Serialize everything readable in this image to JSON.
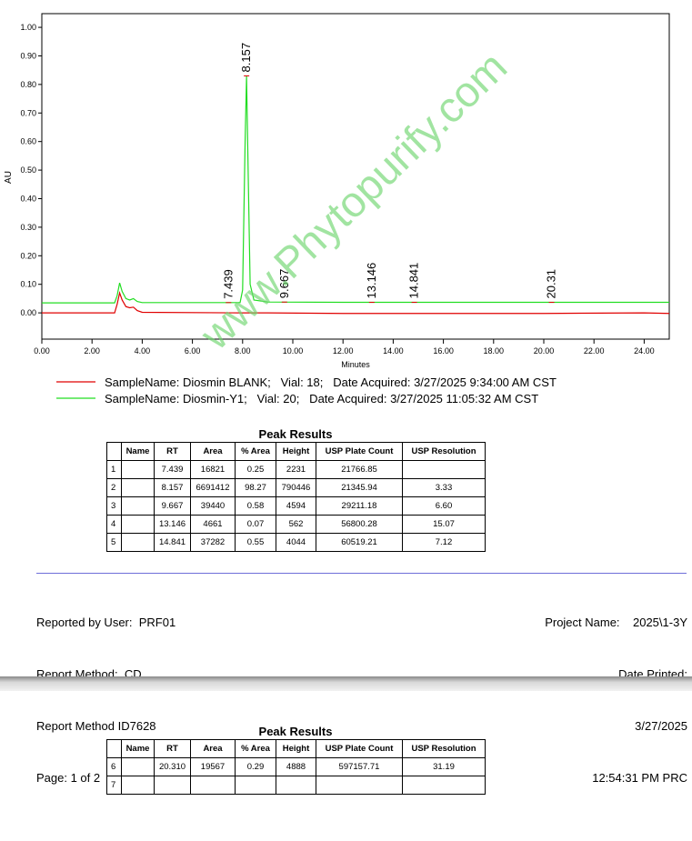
{
  "chart_data": {
    "type": "line",
    "x_label": "Minutes",
    "y_label": "AU",
    "xlim": [
      0,
      25
    ],
    "ylim": [
      -0.092,
      1.048
    ],
    "xticks": [
      {
        "value": 0,
        "label": "0.00"
      },
      {
        "value": 2,
        "label": "2.00"
      },
      {
        "value": 4,
        "label": "4.00"
      },
      {
        "value": 6,
        "label": "6.00"
      },
      {
        "value": 8,
        "label": "8.00"
      },
      {
        "value": 10,
        "label": "10.00"
      },
      {
        "value": 12,
        "label": "12.00"
      },
      {
        "value": 14,
        "label": "14.00"
      },
      {
        "value": 16,
        "label": "16.00"
      },
      {
        "value": 18,
        "label": "18.00"
      },
      {
        "value": 20,
        "label": "20.00"
      },
      {
        "value": 22,
        "label": "22.00"
      },
      {
        "value": 24,
        "label": "24.00"
      }
    ],
    "yticks": [
      {
        "value": 0,
        "label": "0.00"
      },
      {
        "value": 0.1,
        "label": "0.10"
      },
      {
        "value": 0.2,
        "label": "0.20"
      },
      {
        "value": 0.3,
        "label": "0.30"
      },
      {
        "value": 0.4,
        "label": "0.40"
      },
      {
        "value": 0.5,
        "label": "0.50"
      },
      {
        "value": 0.6,
        "label": "0.60"
      },
      {
        "value": 0.7,
        "label": "0.70"
      },
      {
        "value": 0.8,
        "label": "0.80"
      },
      {
        "value": 0.9,
        "label": "0.90"
      },
      {
        "value": 1,
        "label": "1.00"
      }
    ],
    "x": [
      0,
      2.9,
      3.0,
      3.1,
      3.2,
      3.35,
      3.5,
      3.65,
      3.8,
      4.0,
      7.9,
      8.0,
      8.1,
      8.157,
      8.22,
      8.3,
      8.45,
      9.0,
      12,
      16,
      20,
      24,
      25
    ],
    "series": [
      {
        "name": "SampleName: Diosmin BLANK;   Vial: 18;   Date Acquired: 3/27/2025 9:34:00 AM CST",
        "color": "#e00000",
        "values": [
          0.0,
          0.0,
          0.03,
          0.07,
          0.045,
          0.022,
          0.018,
          0.02,
          0.008,
          0.002,
          0.0,
          0.0,
          0.0,
          0.0,
          0.0,
          0.0,
          0.0,
          0.0,
          -0.002,
          -0.002,
          -0.002,
          0.0,
          -0.002
        ]
      },
      {
        "name": "SampleName: Diosmin-Y1;   Vial: 20;   Date Acquired: 3/27/2025 11:05:32 AM CST",
        "color": "#22dd22",
        "values": [
          0.035,
          0.035,
          0.06,
          0.105,
          0.075,
          0.05,
          0.045,
          0.05,
          0.04,
          0.036,
          0.036,
          0.08,
          0.6,
          0.83,
          0.5,
          0.1,
          0.045,
          0.038,
          0.037,
          0.037,
          0.037,
          0.037,
          0.037
        ]
      }
    ],
    "peak_labels": [
      7.439,
      8.157,
      9.667,
      13.146,
      14.841,
      20.31
    ]
  },
  "watermark": "www.Phytopurify.com",
  "tables": [
    {
      "title": "Peak Results",
      "columns": [
        null,
        "Name",
        "RT",
        "Area",
        "% Area",
        "Height",
        "USP Plate Count",
        "USP Resolution"
      ],
      "rows": [
        [
          "1",
          null,
          "7.439",
          "16821",
          "0.25",
          "2231",
          "21766.85",
          null
        ],
        [
          "2",
          null,
          "8.157",
          "6691412",
          "98.27",
          "790446",
          "21345.94",
          "3.33"
        ],
        [
          "3",
          null,
          "9.667",
          "39440",
          "0.58",
          "4594",
          "29211.18",
          "6.60"
        ],
        [
          "4",
          null,
          "13.146",
          "4661",
          "0.07",
          "562",
          "56800.28",
          "15.07"
        ],
        [
          "5",
          null,
          "14.841",
          "37282",
          "0.55",
          "4044",
          "60519.21",
          "7.12"
        ]
      ]
    },
    {
      "title": "Peak Results",
      "columns": [
        null,
        "Name",
        "RT",
        "Area",
        "% Area",
        "Height",
        "USP Plate Count",
        "USP Resolution"
      ],
      "rows": [
        [
          "6",
          null,
          "20.310",
          "19567",
          "0.29",
          "4888",
          "597157.71",
          "31.19"
        ],
        [
          "7",
          null,
          null,
          null,
          null,
          null,
          null,
          null
        ]
      ]
    }
  ],
  "footer": {
    "left": [
      "Reported by User:  PRF01",
      "Report Method:  CD",
      "Report Method ID7628",
      "Page: 1 of 2"
    ],
    "right": [
      "Project Name:    2025\\1-3Y",
      "Date Printed:",
      "3/27/2025",
      "12:54:31 PM PRC"
    ]
  }
}
